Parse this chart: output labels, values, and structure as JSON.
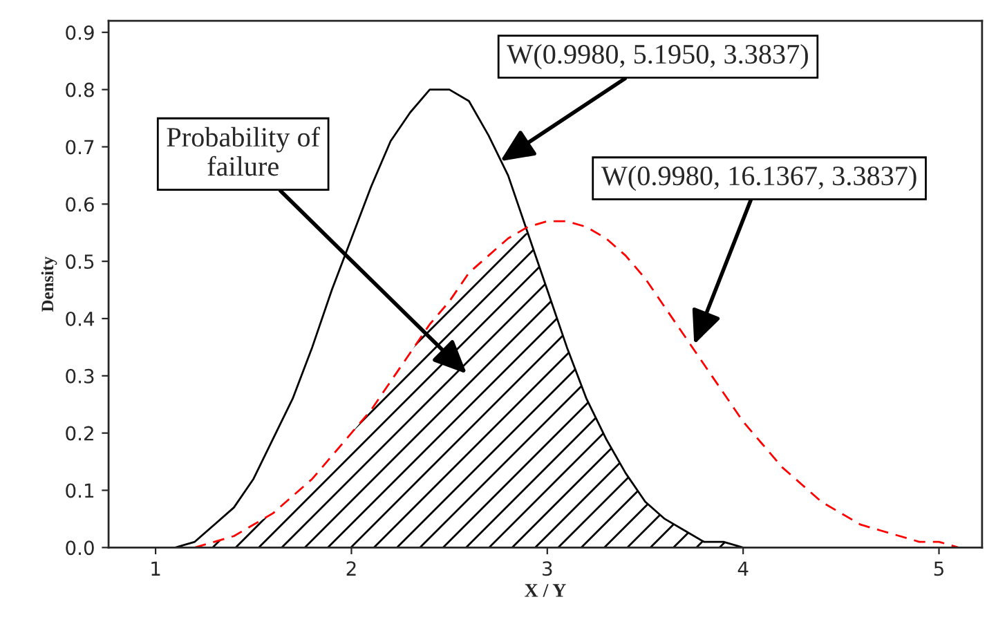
{
  "chart_data": {
    "type": "line",
    "xlabel": "X / Y",
    "ylabel": "Density",
    "x": [
      1.0,
      1.1,
      1.2,
      1.3,
      1.4,
      1.5,
      1.6,
      1.7,
      1.8,
      1.9,
      2.0,
      2.1,
      2.2,
      2.3,
      2.4,
      2.5,
      2.6,
      2.7,
      2.8,
      2.9,
      3.0,
      3.1,
      3.2,
      3.3,
      3.4,
      3.5,
      3.6,
      3.7,
      3.8,
      3.9,
      4.0,
      4.1,
      4.2,
      4.3,
      4.4,
      4.5,
      4.6,
      4.7,
      4.8,
      4.9,
      5.0,
      5.1,
      5.2
    ],
    "series": [
      {
        "type": "area",
        "color": "#000000",
        "values": [
          0.0,
          0.0,
          0.0,
          0.01,
          0.02,
          0.04,
          0.06,
          0.09,
          0.12,
          0.16,
          0.2,
          0.24,
          0.29,
          0.34,
          0.39,
          0.43,
          0.48,
          0.51,
          0.54,
          0.55,
          0.45,
          0.35,
          0.26,
          0.19,
          0.13,
          0.08,
          0.05,
          0.03,
          0.01,
          0.01,
          0.0,
          null,
          null,
          null,
          null,
          null,
          null,
          null,
          null,
          null,
          null,
          null,
          null
        ]
      },
      {
        "color": "#000000",
        "line_style": "solid",
        "values": [
          0.0,
          0.0,
          0.01,
          0.04,
          0.07,
          0.12,
          0.19,
          0.26,
          0.35,
          0.45,
          0.54,
          0.63,
          0.71,
          0.76,
          0.8,
          0.8,
          0.78,
          0.72,
          0.65,
          0.55,
          0.45,
          0.35,
          0.26,
          0.19,
          0.13,
          0.08,
          0.05,
          0.03,
          0.01,
          0.01,
          0.0,
          0.0,
          0.0,
          0.0,
          0.0,
          0.0,
          0.0,
          0.0,
          0.0,
          0.0,
          0.0,
          0.0,
          0.0
        ]
      },
      {
        "color": "#ff0000",
        "line_style": "dashed",
        "values": [
          null,
          null,
          0.0,
          0.01,
          0.02,
          0.04,
          0.06,
          0.09,
          0.12,
          0.16,
          0.2,
          0.24,
          0.29,
          0.34,
          0.39,
          0.43,
          0.48,
          0.51,
          0.54,
          0.56,
          0.57,
          0.57,
          0.56,
          0.54,
          0.51,
          0.47,
          0.42,
          0.37,
          0.32,
          0.27,
          0.22,
          0.18,
          0.14,
          0.11,
          0.08,
          0.06,
          0.04,
          0.03,
          0.02,
          0.01,
          0.01,
          0.0,
          null
        ]
      }
    ],
    "xlim": [
      0.76,
      5.22
    ],
    "ylim": [
      0,
      0.92
    ],
    "xticks": [
      1,
      2,
      3,
      4,
      5
    ],
    "yticks": [
      {
        "value": 0,
        "label": "0.0"
      },
      0.1,
      0.2,
      0.3,
      0.4,
      0.5,
      0.6,
      0.7,
      0.8,
      0.9
    ],
    "grid": false,
    "legend": false,
    "marker": "none",
    "annotations": [
      {
        "text": "W(0.9980, 5.1950, 3.3837)",
        "x": 2.76,
        "y": 0.675
      },
      {
        "text": "W(0.9980, 16.1367, 3.3837)",
        "x": 3.75,
        "y": 0.355
      },
      "Probability of\nfailure"
    ]
  }
}
